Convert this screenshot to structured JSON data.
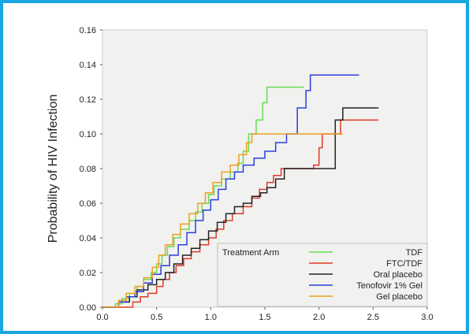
{
  "chart_data": {
    "type": "line",
    "ylabel": "Probability of HIV Infection",
    "xlabel": "",
    "xlim": [
      0,
      3
    ],
    "ylim": [
      0,
      0.16
    ],
    "x_ticks": [
      "0.0",
      "0.5",
      "1.0",
      "1.5",
      "2.0",
      "2.5",
      "3.0"
    ],
    "y_ticks": [
      "0.00",
      "0.02",
      "0.04",
      "0.06",
      "0.08",
      "0.10",
      "0.12",
      "0.14",
      "0.16"
    ],
    "grid": false,
    "legend_title": "Treatment Arm",
    "legend_position": "bottom-right",
    "series": [
      {
        "name": "TDF",
        "color": "#66dd55",
        "points": [
          [
            0,
            0
          ],
          [
            0.08,
            0
          ],
          [
            0.12,
            0.002
          ],
          [
            0.18,
            0.005
          ],
          [
            0.25,
            0.008
          ],
          [
            0.32,
            0.012
          ],
          [
            0.38,
            0.016
          ],
          [
            0.45,
            0.02
          ],
          [
            0.5,
            0.025
          ],
          [
            0.55,
            0.03
          ],
          [
            0.6,
            0.035
          ],
          [
            0.66,
            0.04
          ],
          [
            0.72,
            0.045
          ],
          [
            0.8,
            0.05
          ],
          [
            0.86,
            0.055
          ],
          [
            0.92,
            0.06
          ],
          [
            0.98,
            0.065
          ],
          [
            1.03,
            0.07
          ],
          [
            1.1,
            0.074
          ],
          [
            1.18,
            0.078
          ],
          [
            1.25,
            0.083
          ],
          [
            1.3,
            0.09
          ],
          [
            1.35,
            0.1
          ],
          [
            1.42,
            0.108
          ],
          [
            1.48,
            0.118
          ],
          [
            1.52,
            0.127
          ],
          [
            1.62,
            0.127
          ],
          [
            1.7,
            0.127
          ],
          [
            1.86,
            0.127
          ]
        ]
      },
      {
        "name": "FTC/TDF",
        "color": "#e03a2a",
        "points": [
          [
            0,
            0
          ],
          [
            0.2,
            0
          ],
          [
            0.28,
            0.003
          ],
          [
            0.35,
            0.006
          ],
          [
            0.42,
            0.008
          ],
          [
            0.5,
            0.012
          ],
          [
            0.56,
            0.016
          ],
          [
            0.62,
            0.02
          ],
          [
            0.68,
            0.024
          ],
          [
            0.75,
            0.028
          ],
          [
            0.82,
            0.032
          ],
          [
            0.9,
            0.036
          ],
          [
            0.98,
            0.04
          ],
          [
            1.05,
            0.045
          ],
          [
            1.12,
            0.05
          ],
          [
            1.2,
            0.054
          ],
          [
            1.3,
            0.058
          ],
          [
            1.38,
            0.063
          ],
          [
            1.45,
            0.068
          ],
          [
            1.52,
            0.072
          ],
          [
            1.58,
            0.076
          ],
          [
            1.65,
            0.08
          ],
          [
            1.75,
            0.08
          ],
          [
            1.85,
            0.08
          ],
          [
            1.95,
            0.082
          ],
          [
            2.0,
            0.092
          ],
          [
            2.03,
            0.1
          ],
          [
            2.08,
            0.1
          ],
          [
            2.1,
            0.1
          ],
          [
            2.15,
            0.1
          ],
          [
            2.2,
            0.108
          ],
          [
            2.55,
            0.108
          ]
        ]
      },
      {
        "name": "Oral placebo",
        "color": "#222222",
        "points": [
          [
            0,
            0
          ],
          [
            0.1,
            0
          ],
          [
            0.15,
            0.003
          ],
          [
            0.25,
            0.006
          ],
          [
            0.32,
            0.01
          ],
          [
            0.42,
            0.013
          ],
          [
            0.5,
            0.016
          ],
          [
            0.58,
            0.02
          ],
          [
            0.66,
            0.025
          ],
          [
            0.74,
            0.03
          ],
          [
            0.82,
            0.034
          ],
          [
            0.9,
            0.039
          ],
          [
            0.98,
            0.044
          ],
          [
            1.06,
            0.049
          ],
          [
            1.14,
            0.054
          ],
          [
            1.22,
            0.058
          ],
          [
            1.3,
            0.06
          ],
          [
            1.38,
            0.064
          ],
          [
            1.46,
            0.066
          ],
          [
            1.52,
            0.069
          ],
          [
            1.6,
            0.074
          ],
          [
            1.68,
            0.08
          ],
          [
            1.78,
            0.08
          ],
          [
            1.9,
            0.08
          ],
          [
            2.0,
            0.08
          ],
          [
            2.1,
            0.08
          ],
          [
            2.15,
            0.108
          ],
          [
            2.22,
            0.115
          ],
          [
            2.55,
            0.115
          ]
        ]
      },
      {
        "name": "Tenofovir 1% Gel",
        "color": "#2d3de0",
        "points": [
          [
            0,
            0
          ],
          [
            0.08,
            0
          ],
          [
            0.15,
            0.003
          ],
          [
            0.22,
            0.006
          ],
          [
            0.3,
            0.009
          ],
          [
            0.38,
            0.014
          ],
          [
            0.46,
            0.019
          ],
          [
            0.54,
            0.024
          ],
          [
            0.62,
            0.03
          ],
          [
            0.7,
            0.036
          ],
          [
            0.78,
            0.043
          ],
          [
            0.86,
            0.05
          ],
          [
            0.93,
            0.056
          ],
          [
            1.0,
            0.062
          ],
          [
            1.07,
            0.068
          ],
          [
            1.14,
            0.074
          ],
          [
            1.22,
            0.078
          ],
          [
            1.3,
            0.082
          ],
          [
            1.4,
            0.086
          ],
          [
            1.5,
            0.09
          ],
          [
            1.6,
            0.095
          ],
          [
            1.7,
            0.1
          ],
          [
            1.8,
            0.115
          ],
          [
            1.88,
            0.125
          ],
          [
            1.92,
            0.134
          ],
          [
            2.1,
            0.134
          ],
          [
            2.37,
            0.134
          ]
        ]
      },
      {
        "name": "Gel placebo",
        "color": "#f0a020",
        "points": [
          [
            0,
            0
          ],
          [
            0.08,
            0
          ],
          [
            0.15,
            0.004
          ],
          [
            0.22,
            0.008
          ],
          [
            0.3,
            0.012
          ],
          [
            0.38,
            0.017
          ],
          [
            0.46,
            0.023
          ],
          [
            0.52,
            0.03
          ],
          [
            0.58,
            0.036
          ],
          [
            0.65,
            0.042
          ],
          [
            0.72,
            0.048
          ],
          [
            0.8,
            0.054
          ],
          [
            0.88,
            0.06
          ],
          [
            0.95,
            0.066
          ],
          [
            1.02,
            0.072
          ],
          [
            1.1,
            0.078
          ],
          [
            1.18,
            0.082
          ],
          [
            1.26,
            0.088
          ],
          [
            1.33,
            0.095
          ],
          [
            1.38,
            0.1
          ],
          [
            1.5,
            0.1
          ],
          [
            1.7,
            0.1
          ],
          [
            1.9,
            0.1
          ],
          [
            2.05,
            0.1
          ],
          [
            2.22,
            0.1
          ]
        ]
      }
    ]
  }
}
